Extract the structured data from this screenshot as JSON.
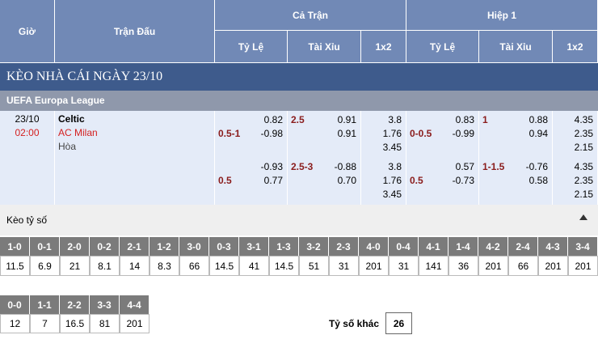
{
  "header": {
    "time": "Giờ",
    "match": "Trận Đấu",
    "full_time": "Cả Trận",
    "first_half": "Hiệp 1",
    "columns": [
      "Tỷ Lệ",
      "Tài Xỉu",
      "1x2",
      "Tỷ Lệ",
      "Tài Xỉu",
      "1x2"
    ]
  },
  "title": "KÈO NHÀ CÁI NGÀY 23/10",
  "league": "UEFA Europa League",
  "match": {
    "date": "23/10",
    "time": "02:00",
    "home": "Celtic",
    "away": "AC Milan",
    "draw": "Hòa"
  },
  "rows": [
    {
      "ft_handicap": {
        "line": "0.5-1",
        "odds": [
          "0.82",
          "-0.98"
        ]
      },
      "ft_total": {
        "line": "2.5",
        "odds": [
          "0.91",
          "0.91"
        ]
      },
      "ft_1x2": [
        "3.8",
        "1.76",
        "3.45"
      ],
      "h1_handicap": {
        "line": "0-0.5",
        "odds": [
          "0.83",
          "-0.99"
        ]
      },
      "h1_total": {
        "line": "1",
        "odds": [
          "0.88",
          "0.94"
        ]
      },
      "h1_1x2": [
        "4.35",
        "2.35",
        "2.15"
      ]
    },
    {
      "ft_handicap": {
        "line": "0.5",
        "odds": [
          "-0.93",
          "0.77"
        ]
      },
      "ft_total": {
        "line": "2.5-3",
        "odds": [
          "-0.88",
          "0.70"
        ]
      },
      "ft_1x2": [
        "3.8",
        "1.76",
        "3.45"
      ],
      "h1_handicap": {
        "line": "0.5",
        "odds": [
          "0.57",
          "-0.73"
        ]
      },
      "h1_total": {
        "line": "1-1.5",
        "odds": [
          "-0.76",
          "0.58"
        ]
      },
      "h1_1x2": [
        "4.35",
        "2.35",
        "2.15"
      ]
    }
  ],
  "correct_score": {
    "title": "Kèo tỷ số",
    "scores": [
      {
        "score": "1-0",
        "odds": 11.5
      },
      {
        "score": "0-1",
        "odds": 6.9
      },
      {
        "score": "2-0",
        "odds": 21
      },
      {
        "score": "0-2",
        "odds": 8.1
      },
      {
        "score": "2-1",
        "odds": 14
      },
      {
        "score": "1-2",
        "odds": 8.3
      },
      {
        "score": "3-0",
        "odds": 66
      },
      {
        "score": "0-3",
        "odds": 14.5
      },
      {
        "score": "3-1",
        "odds": 41
      },
      {
        "score": "1-3",
        "odds": 14.5
      },
      {
        "score": "3-2",
        "odds": 51
      },
      {
        "score": "2-3",
        "odds": 31
      },
      {
        "score": "4-0",
        "odds": 201
      },
      {
        "score": "0-4",
        "odds": 31
      },
      {
        "score": "4-1",
        "odds": 141
      },
      {
        "score": "1-4",
        "odds": 36
      },
      {
        "score": "4-2",
        "odds": 201
      },
      {
        "score": "2-4",
        "odds": 66
      },
      {
        "score": "4-3",
        "odds": 201
      },
      {
        "score": "3-4",
        "odds": 201
      }
    ],
    "draws": [
      {
        "score": "0-0",
        "odds": 12
      },
      {
        "score": "1-1",
        "odds": 7
      },
      {
        "score": "2-2",
        "odds": 16.5
      },
      {
        "score": "3-3",
        "odds": 81
      },
      {
        "score": "4-4",
        "odds": 201
      }
    ],
    "other": {
      "label": "Tỷ số khác",
      "odds": 26
    }
  }
}
